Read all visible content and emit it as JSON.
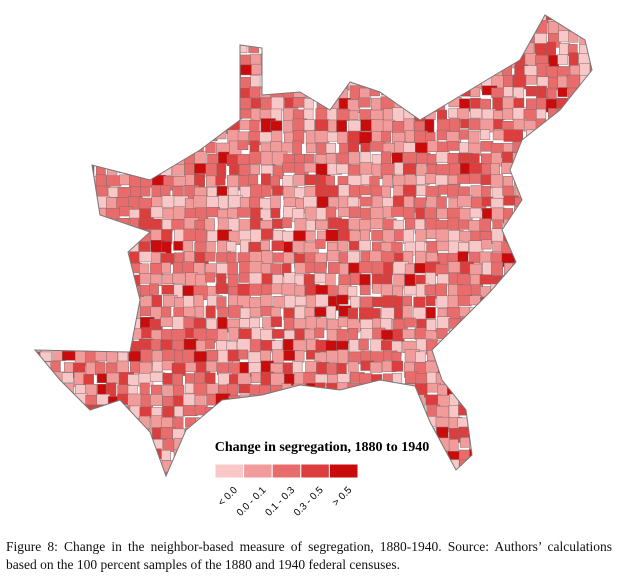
{
  "figure": {
    "legend": {
      "title": "Change in segregation, 1880 to 1940",
      "items": [
        {
          "label": "< 0.0",
          "color": "#f8c8c8"
        },
        {
          "label": "0.0 - 0.1",
          "color": "#f19b9b"
        },
        {
          "label": "0.1 - 0.3",
          "color": "#e86c6c"
        },
        {
          "label": "0.3 - 0.5",
          "color": "#dc3d3d"
        },
        {
          "label": "> 0.5",
          "color": "#c90b0b"
        }
      ]
    },
    "caption": "Figure 8: Change in the neighbor-based measure of segregation, 1880-1940. Source: Authors’ calculations based on the 100 percent samples of the 1880 and 1940 federal censuses."
  }
}
